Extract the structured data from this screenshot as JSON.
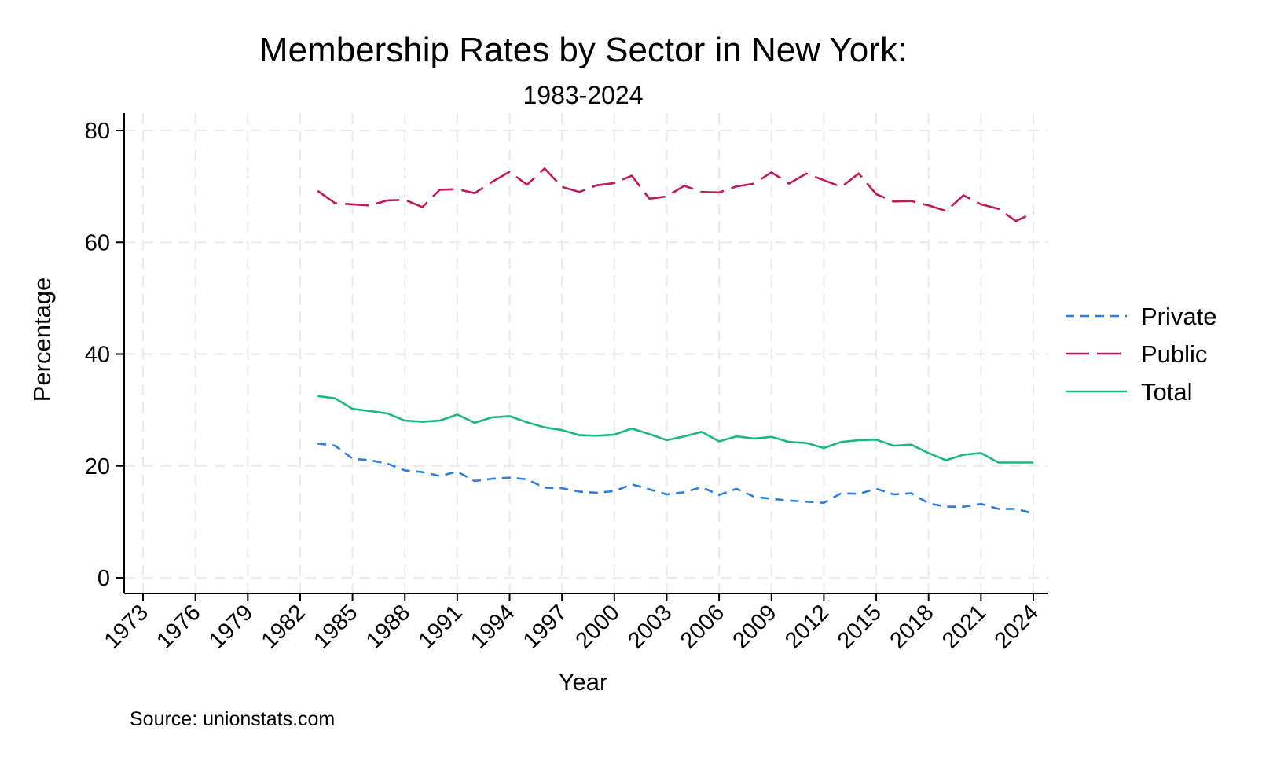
{
  "chart_data": {
    "type": "line",
    "title": "Membership Rates by Sector in New York:",
    "subtitle": "1983-2024",
    "xlabel": "Year",
    "ylabel": "Percentage",
    "note": "Source: unionstats.com",
    "xlim": [
      1973,
      2024
    ],
    "ylim": [
      0,
      80
    ],
    "xticks": [
      "1973",
      "1976",
      "1979",
      "1982",
      "1985",
      "1988",
      "1991",
      "1994",
      "1997",
      "2000",
      "2003",
      "2006",
      "2009",
      "2012",
      "2015",
      "2018",
      "2021",
      "2024"
    ],
    "yticks": [
      "0",
      "20",
      "40",
      "60",
      "80"
    ],
    "grid": true,
    "legend_position": "right",
    "x": [
      1983,
      1984,
      1985,
      1986,
      1987,
      1988,
      1989,
      1990,
      1991,
      1992,
      1993,
      1994,
      1995,
      1996,
      1997,
      1998,
      1999,
      2000,
      2001,
      2002,
      2003,
      2004,
      2005,
      2006,
      2007,
      2008,
      2009,
      2010,
      2011,
      2012,
      2013,
      2014,
      2015,
      2016,
      2017,
      2018,
      2019,
      2020,
      2021,
      2022,
      2023,
      2024
    ],
    "series": [
      {
        "name": "Private",
        "color": "#2b7de0",
        "dash": "short",
        "values": [
          24.0,
          23.6,
          21.3,
          21.0,
          20.4,
          19.2,
          18.9,
          18.2,
          19.0,
          17.3,
          17.7,
          17.9,
          17.6,
          16.1,
          16.0,
          15.4,
          15.2,
          15.5,
          16.7,
          15.8,
          14.9,
          15.3,
          16.2,
          14.8,
          15.9,
          14.5,
          14.1,
          13.8,
          13.6,
          13.4,
          15.1,
          15.0,
          15.9,
          14.9,
          15.1,
          13.3,
          12.7,
          12.7,
          13.2,
          12.3,
          12.3,
          11.5
        ]
      },
      {
        "name": "Public",
        "color": "#c2185b",
        "dash": "long",
        "values": [
          69.2,
          67.0,
          66.8,
          66.6,
          67.5,
          67.6,
          66.3,
          69.4,
          69.5,
          68.8,
          70.8,
          72.6,
          70.3,
          73.2,
          69.9,
          69.0,
          70.2,
          70.6,
          71.9,
          67.8,
          68.2,
          70.1,
          69.0,
          68.9,
          70.0,
          70.5,
          72.5,
          70.5,
          72.3,
          71.1,
          69.9,
          72.3,
          68.6,
          67.3,
          67.4,
          66.6,
          65.6,
          68.4,
          66.8,
          66.0,
          63.8,
          65.3
        ]
      },
      {
        "name": "Total",
        "color": "#1bb87d",
        "dash": "solid",
        "values": [
          32.5,
          32.1,
          30.2,
          29.8,
          29.4,
          28.1,
          27.9,
          28.1,
          29.2,
          27.7,
          28.7,
          28.9,
          27.8,
          26.9,
          26.4,
          25.5,
          25.4,
          25.6,
          26.7,
          25.7,
          24.6,
          25.3,
          26.1,
          24.4,
          25.3,
          24.9,
          25.2,
          24.3,
          24.1,
          23.2,
          24.3,
          24.6,
          24.7,
          23.6,
          23.8,
          22.3,
          21.0,
          22.0,
          22.3,
          20.6,
          20.6,
          20.6
        ]
      }
    ]
  }
}
